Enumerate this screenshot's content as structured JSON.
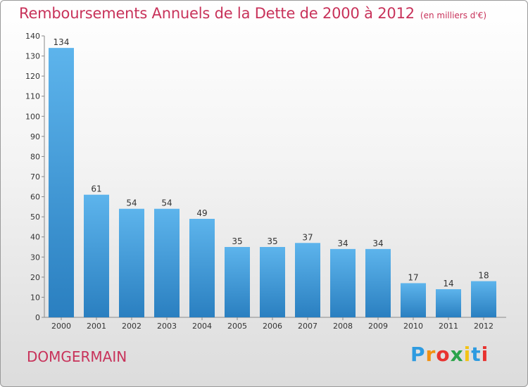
{
  "title": "Remboursements Annuels de la Dette de 2000 à 2012",
  "unit": "(en milliers d'€)",
  "commune": "DOMGERMAIN",
  "brand": {
    "letters": [
      "P",
      "r",
      "o",
      "x",
      "i",
      "t",
      "i"
    ],
    "colors": [
      "#2e9be0",
      "#f29111",
      "#e8322f",
      "#2aa34a",
      "#f3c316",
      "#2e9be0",
      "#e8322f"
    ]
  },
  "colors": {
    "bar_light": "#5db4ec",
    "bar_dark": "#2a7fc0",
    "title": "#c8325a"
  },
  "chart_data": {
    "type": "bar",
    "categories": [
      "2000",
      "2001",
      "2002",
      "2003",
      "2004",
      "2005",
      "2006",
      "2007",
      "2008",
      "2009",
      "2010",
      "2011",
      "2012"
    ],
    "values": [
      134,
      61,
      54,
      54,
      49,
      35,
      35,
      37,
      34,
      34,
      17,
      14,
      18
    ],
    "title": "Remboursements Annuels de la Dette de 2000 à 2012",
    "xlabel": "",
    "ylabel": "",
    "ylim": [
      0,
      140
    ],
    "yticks": [
      0,
      10,
      20,
      30,
      40,
      50,
      60,
      70,
      80,
      90,
      100,
      110,
      120,
      130,
      140
    ],
    "grid": false,
    "data_labels": true
  }
}
